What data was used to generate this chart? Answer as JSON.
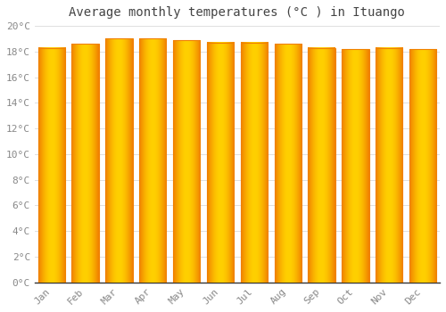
{
  "title": "Average monthly temperatures (°C ) in Ituango",
  "months": [
    "Jan",
    "Feb",
    "Mar",
    "Apr",
    "May",
    "Jun",
    "Jul",
    "Aug",
    "Sep",
    "Oct",
    "Nov",
    "Dec"
  ],
  "temperatures": [
    18.3,
    18.6,
    19.0,
    19.0,
    18.9,
    18.7,
    18.7,
    18.6,
    18.3,
    18.2,
    18.3,
    18.2
  ],
  "bar_color_center": "#FFD000",
  "bar_color_edge": "#F08000",
  "ylim": [
    0,
    20
  ],
  "ytick_step": 2,
  "background_color": "#FFFFFF",
  "plot_bg_color": "#FFFFFF",
  "grid_color": "#E0E0E0",
  "title_fontsize": 10,
  "tick_fontsize": 8,
  "title_color": "#444444",
  "tick_color": "#888888",
  "bar_width": 0.8
}
